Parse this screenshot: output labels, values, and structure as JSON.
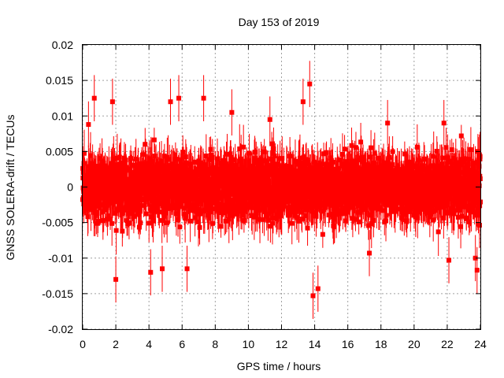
{
  "chart_data": {
    "type": "scatter",
    "title": "Day 153 of 2019",
    "xlabel": "GPS time / hours",
    "ylabel": "GNSS SOLERA-drift / TECUs",
    "xlim": [
      0,
      24
    ],
    "ylim": [
      -0.02,
      0.02
    ],
    "xticks": [
      "0",
      "2",
      "4",
      "6",
      "8",
      "10",
      "12",
      "14",
      "16",
      "18",
      "20",
      "22",
      "24"
    ],
    "yticks": [
      "-0.02",
      "-0.015",
      "-0.01",
      "-0.005",
      "0",
      "0.005",
      "0.01",
      "0.015",
      "0.02"
    ],
    "grid": true,
    "marker": "square",
    "error_bars": true,
    "color": "#ff0000",
    "typical_y_spread": 0.0035,
    "typical_error": 0.0025,
    "n_points": 2880,
    "notable_points": [
      {
        "x": 0.35,
        "y": 0.0088
      },
      {
        "x": 0.7,
        "y": 0.0125
      },
      {
        "x": 1.8,
        "y": 0.012
      },
      {
        "x": 2.0,
        "y": -0.013
      },
      {
        "x": 4.1,
        "y": -0.012
      },
      {
        "x": 4.8,
        "y": -0.0115
      },
      {
        "x": 5.3,
        "y": 0.012
      },
      {
        "x": 5.8,
        "y": 0.0125
      },
      {
        "x": 6.3,
        "y": -0.0115
      },
      {
        "x": 7.3,
        "y": 0.0125
      },
      {
        "x": 9.0,
        "y": 0.0105
      },
      {
        "x": 11.3,
        "y": 0.0095
      },
      {
        "x": 13.3,
        "y": 0.012
      },
      {
        "x": 13.7,
        "y": 0.0145
      },
      {
        "x": 13.9,
        "y": -0.0153
      },
      {
        "x": 14.2,
        "y": -0.0143
      },
      {
        "x": 17.3,
        "y": -0.0093
      },
      {
        "x": 18.4,
        "y": 0.009
      },
      {
        "x": 21.8,
        "y": 0.009
      },
      {
        "x": 22.1,
        "y": -0.0103
      },
      {
        "x": 23.8,
        "y": -0.0117
      },
      {
        "x": 23.7,
        "y": -0.01
      }
    ]
  }
}
